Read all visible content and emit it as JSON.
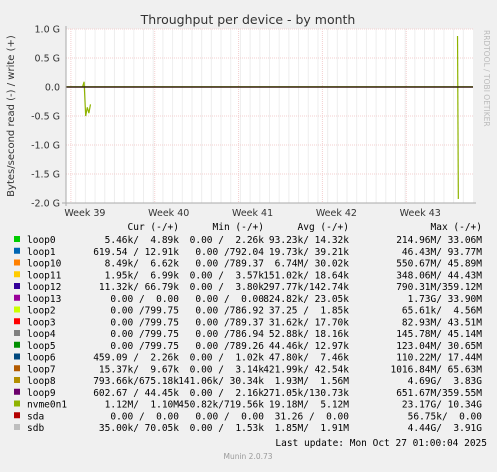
{
  "chart_data": {
    "type": "line",
    "title": "Throughput per device - by month",
    "ylabel": "Bytes/second read (-) / write (+)",
    "watermark": "RRDTOOL / TOBI OETIKER",
    "x_ticks": [
      "Week 39",
      "Week 40",
      "Week 41",
      "Week 42",
      "Week 43"
    ],
    "y_ticks": [
      "1.0 G",
      "0.5 G",
      "0.0",
      "-0.5 G",
      "-1.0 G",
      "-1.5 G",
      "-2.0 G"
    ],
    "ylim": [
      -2000000000,
      1000000000
    ],
    "grid": true,
    "table_header": [
      "Cur (-/+)",
      "Min (-/+)",
      "Avg (-/+)",
      "Max (-/+)"
    ],
    "series": [
      {
        "name": "loop0",
        "color": "#00cc00",
        "cur": "5.46k/  4.89k",
        "min": "0.00 /  2.26k",
        "avg": "93.23k/ 14.32k",
        "max": "214.96M/ 33.06M"
      },
      {
        "name": "loop1",
        "color": "#0066b3",
        "cur": "619.54 / 12.91k",
        "min": "0.00 /792.04",
        "avg": "19.73k/ 39.21k",
        "max": "46.43M/ 93.77M"
      },
      {
        "name": "loop10",
        "color": "#ff8000",
        "cur": "8.49k/  6.62k",
        "min": "0.00 /789.37",
        "avg": "6.74M/ 30.02k",
        "max": "550.67M/ 45.89M"
      },
      {
        "name": "loop11",
        "color": "#ffcc00",
        "cur": "1.95k/  6.99k",
        "min": "0.00 /  3.57k",
        "avg": "151.02k/ 18.64k",
        "max": "348.06M/ 44.43M"
      },
      {
        "name": "loop12",
        "color": "#330099",
        "cur": "11.32k/ 66.79k",
        "min": "0.00 /  3.80k",
        "avg": "297.77k/142.74k",
        "max": "790.31M/359.12M"
      },
      {
        "name": "loop13",
        "color": "#990099",
        "cur": "0.00 /  0.00",
        "min": "0.00 /  0.00",
        "avg": "824.82k/ 23.05k",
        "max": "1.73G/ 33.90M"
      },
      {
        "name": "loop2",
        "color": "#ccff00",
        "cur": "0.00 /799.75",
        "min": "0.00 /786.92",
        "avg": "37.25 /  1.85k",
        "max": "65.61k/  4.56M"
      },
      {
        "name": "loop3",
        "color": "#ff0000",
        "cur": "0.00 /799.75",
        "min": "0.00 /789.37",
        "avg": "31.62k/ 17.70k",
        "max": "82.93M/ 43.51M"
      },
      {
        "name": "loop4",
        "color": "#808080",
        "cur": "0.00 /799.75",
        "min": "0.00 /786.94",
        "avg": "52.88k/ 18.16k",
        "max": "145.78M/ 45.14M"
      },
      {
        "name": "loop5",
        "color": "#008f00",
        "cur": "0.00 /799.75",
        "min": "0.00 /789.26",
        "avg": "44.46k/ 12.97k",
        "max": "123.04M/ 30.65M"
      },
      {
        "name": "loop6",
        "color": "#00487d",
        "cur": "459.09 /  2.26k",
        "min": "0.00 /  1.02k",
        "avg": "47.80k/  7.46k",
        "max": "110.22M/ 17.44M"
      },
      {
        "name": "loop7",
        "color": "#b35a00",
        "cur": "15.37k/  9.67k",
        "min": "0.00 /  3.14k",
        "avg": "421.99k/ 42.54k",
        "max": "1016.84M/ 65.63M"
      },
      {
        "name": "loop8",
        "color": "#b38f00",
        "cur": "793.66k/675.18k",
        "min": "141.06k/ 30.34k",
        "avg": "1.93M/  1.56M",
        "max": "4.69G/  3.83G"
      },
      {
        "name": "loop9",
        "color": "#6b006b",
        "cur": "602.67 / 44.45k",
        "min": "0.00 /  2.16k",
        "avg": "271.05k/130.73k",
        "max": "651.67M/359.55M"
      },
      {
        "name": "nvme0n1",
        "color": "#8fb300",
        "cur": "1.12M/  1.10M",
        "min": "450.82k/719.56k",
        "avg": "19.18M/  5.12M",
        "max": "23.17G/ 10.34G"
      },
      {
        "name": "sda",
        "color": "#b30000",
        "cur": "0.00 /  0.00",
        "min": "0.00 /  0.00",
        "avg": "31.26 /  0.00",
        "max": "56.75k/  0.00"
      },
      {
        "name": "sdb",
        "color": "#bebebe",
        "cur": "35.00k/ 70.05k",
        "min": "0.00 /  1.53k",
        "avg": "1.85M/  1.91M",
        "max": "4.44G/  3.91G"
      }
    ],
    "spikes": [
      {
        "series": "nvme0n1",
        "x_frac": 0.0405,
        "values": [
          0.0,
          0.09,
          -0.5,
          -0.35,
          -0.45,
          -0.3
        ]
      },
      {
        "series": "nvme0n1",
        "x_frac": 0.962,
        "values": [
          0.88,
          -1.93
        ]
      }
    ]
  },
  "footer": {
    "last_update": "Last update: Mon Oct 27 01:00:04 2025",
    "version": "Munin 2.0.73"
  }
}
